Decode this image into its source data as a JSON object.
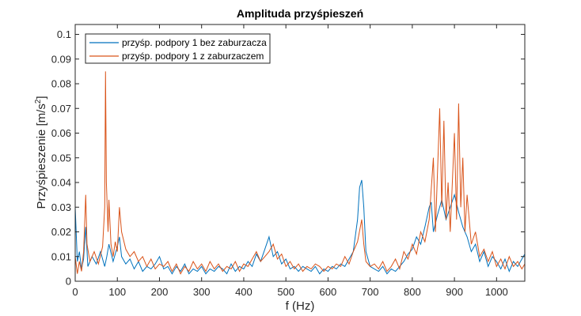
{
  "chart_data": {
    "type": "line",
    "title": "Amplituda przyśpieszeń",
    "xlabel": "f (Hz)",
    "ylabel": "Przyśpieszenie [m/s",
    "ylabel_sup": "2",
    "ylabel_end": "]",
    "xlim": [
      0,
      1067
    ],
    "ylim": [
      0,
      0.104
    ],
    "xticks": [
      0,
      100,
      200,
      300,
      400,
      500,
      600,
      700,
      800,
      900,
      1000
    ],
    "yticks": [
      0,
      0.01,
      0.02,
      0.03,
      0.04,
      0.05,
      0.06,
      0.07,
      0.08,
      0.09,
      0.1
    ],
    "ytick_labels": [
      "0",
      "0.01",
      "0.02",
      "0.03",
      "0.04",
      "0.05",
      "0.06",
      "0.07",
      "0.08",
      "0.09",
      "0.1"
    ],
    "legend_position": "top-left",
    "series": [
      {
        "name": "przyśp. podpory 1 bez zaburzacza",
        "color": "#0072BD",
        "points": [
          [
            0,
            0.03
          ],
          [
            5,
            0.008
          ],
          [
            10,
            0.012
          ],
          [
            15,
            0.005
          ],
          [
            20,
            0.009
          ],
          [
            25,
            0.022
          ],
          [
            30,
            0.006
          ],
          [
            40,
            0.01
          ],
          [
            50,
            0.007
          ],
          [
            60,
            0.012
          ],
          [
            70,
            0.006
          ],
          [
            75,
            0.01
          ],
          [
            80,
            0.015
          ],
          [
            90,
            0.008
          ],
          [
            100,
            0.014
          ],
          [
            105,
            0.018
          ],
          [
            110,
            0.01
          ],
          [
            120,
            0.007
          ],
          [
            130,
            0.009
          ],
          [
            140,
            0.005
          ],
          [
            150,
            0.008
          ],
          [
            160,
            0.004
          ],
          [
            170,
            0.006
          ],
          [
            180,
            0.005
          ],
          [
            190,
            0.007
          ],
          [
            200,
            0.01
          ],
          [
            210,
            0.005
          ],
          [
            220,
            0.006
          ],
          [
            230,
            0.003
          ],
          [
            240,
            0.006
          ],
          [
            250,
            0.004
          ],
          [
            260,
            0.007
          ],
          [
            270,
            0.003
          ],
          [
            280,
            0.005
          ],
          [
            290,
            0.004
          ],
          [
            300,
            0.006
          ],
          [
            310,
            0.003
          ],
          [
            320,
            0.005
          ],
          [
            330,
            0.004
          ],
          [
            340,
            0.006
          ],
          [
            350,
            0.005
          ],
          [
            360,
            0.003
          ],
          [
            370,
            0.007
          ],
          [
            380,
            0.004
          ],
          [
            390,
            0.006
          ],
          [
            400,
            0.005
          ],
          [
            410,
            0.008
          ],
          [
            420,
            0.006
          ],
          [
            430,
            0.011
          ],
          [
            440,
            0.008
          ],
          [
            450,
            0.013
          ],
          [
            460,
            0.018
          ],
          [
            470,
            0.01
          ],
          [
            480,
            0.012
          ],
          [
            490,
            0.007
          ],
          [
            500,
            0.009
          ],
          [
            510,
            0.005
          ],
          [
            520,
            0.006
          ],
          [
            530,
            0.004
          ],
          [
            540,
            0.006
          ],
          [
            550,
            0.005
          ],
          [
            560,
            0.004
          ],
          [
            570,
            0.006
          ],
          [
            580,
            0.003
          ],
          [
            590,
            0.005
          ],
          [
            600,
            0.004
          ],
          [
            610,
            0.006
          ],
          [
            620,
            0.005
          ],
          [
            630,
            0.007
          ],
          [
            640,
            0.006
          ],
          [
            650,
            0.009
          ],
          [
            660,
            0.012
          ],
          [
            670,
            0.025
          ],
          [
            675,
            0.038
          ],
          [
            680,
            0.041
          ],
          [
            685,
            0.03
          ],
          [
            690,
            0.012
          ],
          [
            700,
            0.006
          ],
          [
            710,
            0.005
          ],
          [
            720,
            0.004
          ],
          [
            730,
            0.006
          ],
          [
            740,
            0.003
          ],
          [
            750,
            0.005
          ],
          [
            760,
            0.004
          ],
          [
            770,
            0.006
          ],
          [
            780,
            0.008
          ],
          [
            790,
            0.011
          ],
          [
            800,
            0.013
          ],
          [
            810,
            0.018
          ],
          [
            820,
            0.015
          ],
          [
            830,
            0.022
          ],
          [
            840,
            0.03
          ],
          [
            845,
            0.032
          ],
          [
            850,
            0.02
          ],
          [
            860,
            0.027
          ],
          [
            870,
            0.033
          ],
          [
            880,
            0.025
          ],
          [
            890,
            0.03
          ],
          [
            900,
            0.035
          ],
          [
            910,
            0.028
          ],
          [
            920,
            0.022
          ],
          [
            930,
            0.018
          ],
          [
            940,
            0.012
          ],
          [
            950,
            0.015
          ],
          [
            960,
            0.008
          ],
          [
            970,
            0.012
          ],
          [
            980,
            0.006
          ],
          [
            990,
            0.01
          ],
          [
            1000,
            0.008
          ],
          [
            1010,
            0.005
          ],
          [
            1020,
            0.009
          ],
          [
            1030,
            0.004
          ],
          [
            1040,
            0.008
          ],
          [
            1050,
            0.006
          ],
          [
            1060,
            0.009
          ],
          [
            1067,
            0.011
          ]
        ]
      },
      {
        "name": "przyśp. podpory 1 z zaburzaczem",
        "color": "#D95319",
        "points": [
          [
            0,
            0.01
          ],
          [
            5,
            0.003
          ],
          [
            10,
            0.008
          ],
          [
            15,
            0.004
          ],
          [
            20,
            0.012
          ],
          [
            25,
            0.035
          ],
          [
            28,
            0.015
          ],
          [
            35,
            0.008
          ],
          [
            45,
            0.012
          ],
          [
            55,
            0.007
          ],
          [
            65,
            0.014
          ],
          [
            70,
            0.03
          ],
          [
            72,
            0.085
          ],
          [
            74,
            0.04
          ],
          [
            78,
            0.02
          ],
          [
            80,
            0.033
          ],
          [
            85,
            0.015
          ],
          [
            90,
            0.01
          ],
          [
            95,
            0.016
          ],
          [
            100,
            0.012
          ],
          [
            105,
            0.03
          ],
          [
            110,
            0.02
          ],
          [
            120,
            0.013
          ],
          [
            130,
            0.01
          ],
          [
            140,
            0.012
          ],
          [
            150,
            0.008
          ],
          [
            160,
            0.01
          ],
          [
            170,
            0.006
          ],
          [
            180,
            0.009
          ],
          [
            190,
            0.005
          ],
          [
            200,
            0.007
          ],
          [
            210,
            0.006
          ],
          [
            220,
            0.008
          ],
          [
            230,
            0.004
          ],
          [
            240,
            0.007
          ],
          [
            250,
            0.003
          ],
          [
            260,
            0.006
          ],
          [
            270,
            0.004
          ],
          [
            280,
            0.008
          ],
          [
            290,
            0.005
          ],
          [
            300,
            0.007
          ],
          [
            310,
            0.004
          ],
          [
            320,
            0.008
          ],
          [
            330,
            0.005
          ],
          [
            340,
            0.007
          ],
          [
            350,
            0.004
          ],
          [
            360,
            0.006
          ],
          [
            370,
            0.005
          ],
          [
            380,
            0.008
          ],
          [
            390,
            0.004
          ],
          [
            400,
            0.007
          ],
          [
            410,
            0.006
          ],
          [
            420,
            0.009
          ],
          [
            430,
            0.012
          ],
          [
            440,
            0.008
          ],
          [
            450,
            0.01
          ],
          [
            460,
            0.012
          ],
          [
            470,
            0.015
          ],
          [
            480,
            0.009
          ],
          [
            490,
            0.011
          ],
          [
            500,
            0.006
          ],
          [
            510,
            0.008
          ],
          [
            520,
            0.005
          ],
          [
            530,
            0.007
          ],
          [
            540,
            0.004
          ],
          [
            550,
            0.006
          ],
          [
            560,
            0.005
          ],
          [
            570,
            0.007
          ],
          [
            580,
            0.006
          ],
          [
            590,
            0.004
          ],
          [
            600,
            0.006
          ],
          [
            610,
            0.005
          ],
          [
            620,
            0.007
          ],
          [
            630,
            0.006
          ],
          [
            640,
            0.01
          ],
          [
            650,
            0.007
          ],
          [
            660,
            0.012
          ],
          [
            670,
            0.016
          ],
          [
            680,
            0.025
          ],
          [
            685,
            0.015
          ],
          [
            690,
            0.008
          ],
          [
            700,
            0.006
          ],
          [
            710,
            0.007
          ],
          [
            720,
            0.005
          ],
          [
            730,
            0.008
          ],
          [
            740,
            0.004
          ],
          [
            750,
            0.006
          ],
          [
            760,
            0.009
          ],
          [
            770,
            0.005
          ],
          [
            780,
            0.012
          ],
          [
            790,
            0.009
          ],
          [
            800,
            0.015
          ],
          [
            810,
            0.011
          ],
          [
            820,
            0.02
          ],
          [
            830,
            0.016
          ],
          [
            840,
            0.025
          ],
          [
            850,
            0.05
          ],
          [
            855,
            0.02
          ],
          [
            860,
            0.045
          ],
          [
            865,
            0.07
          ],
          [
            870,
            0.03
          ],
          [
            875,
            0.065
          ],
          [
            880,
            0.025
          ],
          [
            885,
            0.04
          ],
          [
            890,
            0.02
          ],
          [
            900,
            0.06
          ],
          [
            905,
            0.025
          ],
          [
            910,
            0.072
          ],
          [
            915,
            0.03
          ],
          [
            920,
            0.05
          ],
          [
            925,
            0.02
          ],
          [
            930,
            0.035
          ],
          [
            940,
            0.015
          ],
          [
            950,
            0.02
          ],
          [
            960,
            0.01
          ],
          [
            970,
            0.013
          ],
          [
            980,
            0.008
          ],
          [
            990,
            0.012
          ],
          [
            1000,
            0.006
          ],
          [
            1010,
            0.009
          ],
          [
            1020,
            0.005
          ],
          [
            1030,
            0.01
          ],
          [
            1040,
            0.006
          ],
          [
            1050,
            0.008
          ],
          [
            1060,
            0.005
          ],
          [
            1067,
            0.007
          ]
        ]
      }
    ]
  }
}
